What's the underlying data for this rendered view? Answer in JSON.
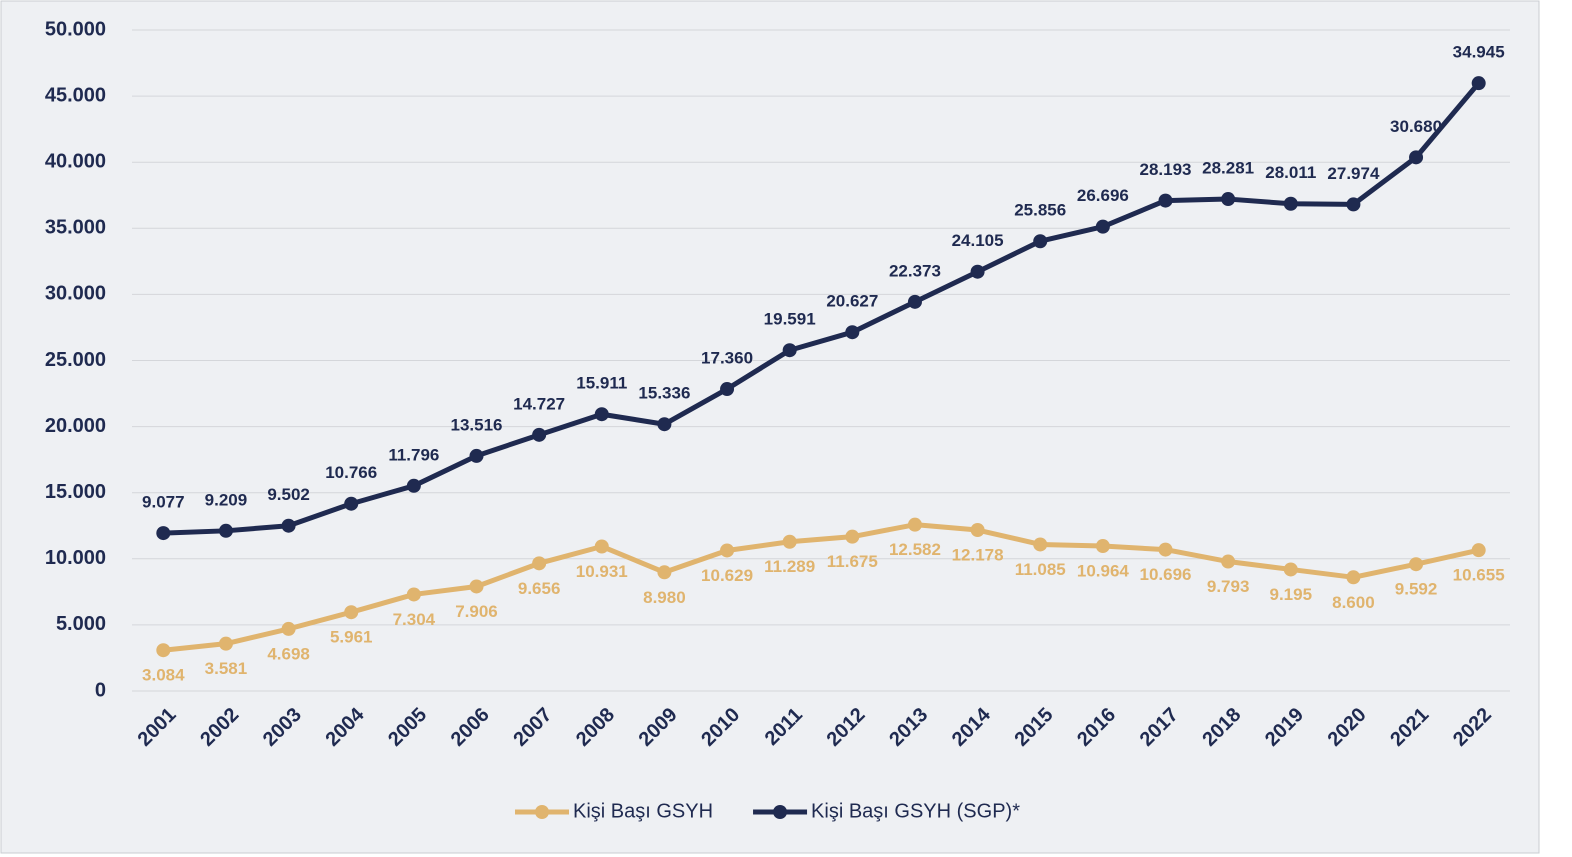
{
  "chart_data": {
    "type": "line",
    "categories": [
      "2001",
      "2002",
      "2003",
      "2004",
      "2005",
      "2006",
      "2007",
      "2008",
      "2009",
      "2010",
      "2011",
      "2012",
      "2013",
      "2014",
      "2015",
      "2016",
      "2017",
      "2018",
      "2019",
      "2020",
      "2021",
      "2022"
    ],
    "ylim": [
      0,
      50000
    ],
    "yticks": [
      {
        "value": 0,
        "label": "0"
      },
      {
        "value": 5000,
        "label": "5.000"
      },
      {
        "value": 10000,
        "label": "10.000"
      },
      {
        "value": 15000,
        "label": "15.000"
      },
      {
        "value": 20000,
        "label": "20.000"
      },
      {
        "value": 25000,
        "label": "25.000"
      },
      {
        "value": 30000,
        "label": "30.000"
      },
      {
        "value": 35000,
        "label": "35.000"
      },
      {
        "value": 40000,
        "label": "40.000"
      },
      {
        "value": 45000,
        "label": "45.000"
      },
      {
        "value": 50000,
        "label": "50.000"
      }
    ],
    "y2lim": [
      0,
      38000
    ],
    "grid": true,
    "legend": "bottom",
    "series": [
      {
        "name": "Kişi Başı GSYH",
        "color": "#e0b46e",
        "values": [
          3084,
          3581,
          4698,
          5961,
          7304,
          7906,
          9656,
          10931,
          8980,
          10629,
          11289,
          11675,
          12582,
          12178,
          11085,
          10964,
          10696,
          9793,
          9195,
          8600,
          9592,
          10655
        ],
        "value_labels": [
          "3.084",
          "3.581",
          "4.698",
          "5.961",
          "7.304",
          "7.906",
          "9.656",
          "10.931",
          "8.980",
          "10.629",
          "11.289",
          "11.675",
          "12.582",
          "12.178",
          "11.085",
          "10.964",
          "10.696",
          "9.793",
          "9.195",
          "8.600",
          "9.592",
          "10.655"
        ]
      },
      {
        "name": "Kişi Başı GSYH (SGP)*",
        "color": "#1f2a50",
        "axis": "y2",
        "values": [
          9077,
          9209,
          9502,
          10766,
          11796,
          13516,
          14727,
          15911,
          15336,
          17360,
          19591,
          20627,
          22373,
          24105,
          25856,
          26696,
          28193,
          28281,
          28011,
          27974,
          30680,
          34945
        ],
        "value_labels": [
          "9.077",
          "9.209",
          "9.502",
          "10.766",
          "11.796",
          "13.516",
          "14.727",
          "15.911",
          "15.336",
          "17.360",
          "19.591",
          "20.627",
          "22.373",
          "24.105",
          "25.856",
          "26.696",
          "28.193",
          "28.281",
          "28.011",
          "27.974",
          "30.680",
          "34.945"
        ]
      }
    ]
  }
}
